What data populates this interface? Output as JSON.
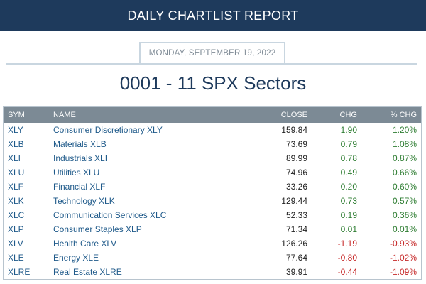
{
  "header": {
    "title": "DAILY CHARTLIST REPORT"
  },
  "report": {
    "date": "MONDAY, SEPTEMBER 19, 2022",
    "title": "0001 - 11 SPX Sectors"
  },
  "table": {
    "columns": [
      "SYM",
      "NAME",
      "CLOSE",
      "CHG",
      "% CHG"
    ],
    "rows": [
      {
        "sym": "XLY",
        "name": "Consumer Discretionary XLY",
        "close": "159.84",
        "chg": "1.90",
        "pct": "1.20%",
        "dir": "pos"
      },
      {
        "sym": "XLB",
        "name": "Materials XLB",
        "close": "73.69",
        "chg": "0.79",
        "pct": "1.08%",
        "dir": "pos"
      },
      {
        "sym": "XLI",
        "name": "Industrials XLI",
        "close": "89.99",
        "chg": "0.78",
        "pct": "0.87%",
        "dir": "pos"
      },
      {
        "sym": "XLU",
        "name": "Utilities XLU",
        "close": "74.96",
        "chg": "0.49",
        "pct": "0.66%",
        "dir": "pos"
      },
      {
        "sym": "XLF",
        "name": "Financial XLF",
        "close": "33.26",
        "chg": "0.20",
        "pct": "0.60%",
        "dir": "pos"
      },
      {
        "sym": "XLK",
        "name": "Technology XLK",
        "close": "129.44",
        "chg": "0.73",
        "pct": "0.57%",
        "dir": "pos"
      },
      {
        "sym": "XLC",
        "name": "Communication Services XLC",
        "close": "52.33",
        "chg": "0.19",
        "pct": "0.36%",
        "dir": "pos"
      },
      {
        "sym": "XLP",
        "name": "Consumer Staples XLP",
        "close": "71.34",
        "chg": "0.01",
        "pct": "0.01%",
        "dir": "pos"
      },
      {
        "sym": "XLV",
        "name": "Health Care XLV",
        "close": "126.26",
        "chg": "-1.19",
        "pct": "-0.93%",
        "dir": "neg"
      },
      {
        "sym": "XLE",
        "name": "Energy XLE",
        "close": "77.64",
        "chg": "-0.80",
        "pct": "-1.02%",
        "dir": "neg"
      },
      {
        "sym": "XLRE",
        "name": "Real Estate XLRE",
        "close": "39.91",
        "chg": "-0.44",
        "pct": "-1.09%",
        "dir": "neg"
      }
    ]
  },
  "colors": {
    "header_bg": "#1e3a5c",
    "table_header_bg": "#7c8a95",
    "link": "#1f5a8a",
    "positive": "#2e7d32",
    "negative": "#c62828"
  }
}
